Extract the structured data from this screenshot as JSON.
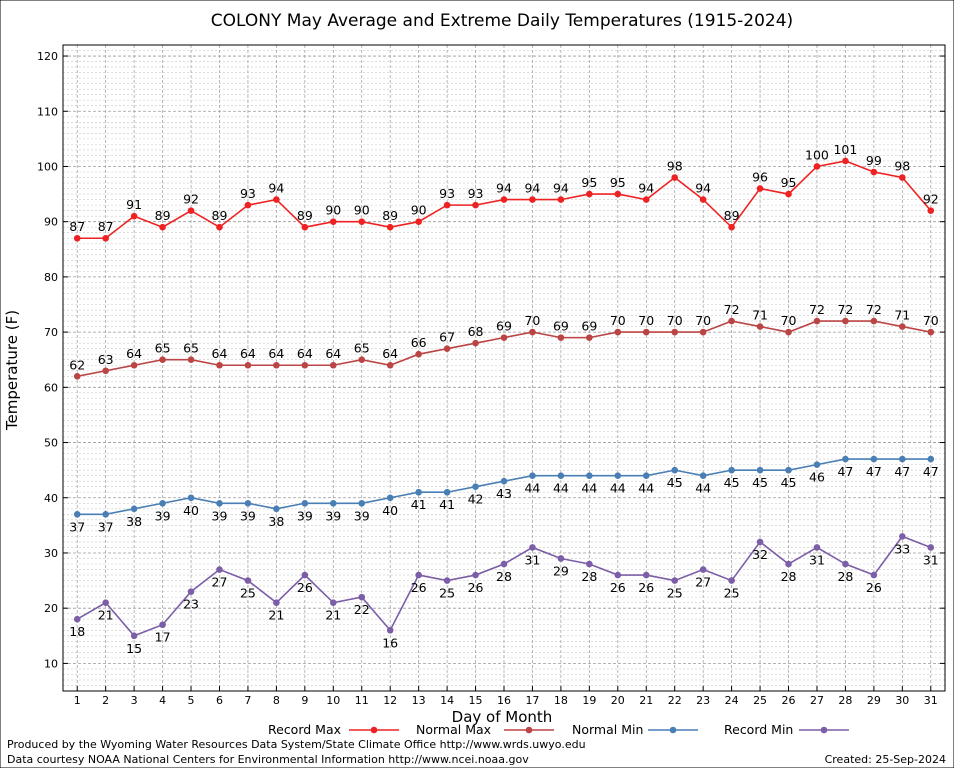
{
  "chart_data": {
    "type": "line",
    "title": "COLONY May Average and Extreme Daily Temperatures (1915-2024)",
    "xlabel": "Day of Month",
    "ylabel": "Temperature (F)",
    "xlim": [
      1,
      31
    ],
    "ylim": [
      5,
      122
    ],
    "y_ticks": [
      10,
      20,
      30,
      40,
      50,
      60,
      70,
      80,
      90,
      100,
      110,
      120
    ],
    "x": [
      1,
      2,
      3,
      4,
      5,
      6,
      7,
      8,
      9,
      10,
      11,
      12,
      13,
      14,
      15,
      16,
      17,
      18,
      19,
      20,
      21,
      22,
      23,
      24,
      25,
      26,
      27,
      28,
      29,
      30,
      31
    ],
    "grid": true,
    "legend_position": "bottom",
    "series": [
      {
        "name": "Record Max",
        "color": "#ee2222",
        "label_side": "above",
        "values": [
          87,
          87,
          91,
          89,
          92,
          89,
          93,
          94,
          89,
          90,
          90,
          89,
          90,
          93,
          93,
          94,
          94,
          94,
          95,
          95,
          94,
          98,
          94,
          89,
          96,
          95,
          100,
          101,
          99,
          98,
          92
        ]
      },
      {
        "name": "Normal Max",
        "color": "#bb4444",
        "label_side": "above",
        "values": [
          62,
          63,
          64,
          65,
          65,
          64,
          64,
          64,
          64,
          64,
          65,
          64,
          66,
          67,
          68,
          69,
          70,
          69,
          69,
          70,
          70,
          70,
          70,
          72,
          71,
          70,
          72,
          72,
          72,
          71,
          70
        ]
      },
      {
        "name": "Normal Min",
        "color": "#4a7fb5",
        "label_side": "below",
        "values": [
          37,
          37,
          38,
          39,
          40,
          39,
          39,
          38,
          39,
          39,
          39,
          40,
          41,
          41,
          42,
          43,
          44,
          44,
          44,
          44,
          44,
          45,
          44,
          45,
          45,
          45,
          46,
          47,
          47,
          47,
          47
        ]
      },
      {
        "name": "Record Min",
        "color": "#7b5ea7",
        "label_side": "below",
        "values": [
          18,
          21,
          15,
          17,
          23,
          27,
          25,
          21,
          26,
          21,
          22,
          16,
          26,
          25,
          26,
          28,
          31,
          29,
          28,
          26,
          26,
          25,
          27,
          25,
          32,
          28,
          31,
          28,
          26,
          33,
          31
        ]
      }
    ]
  },
  "footer": {
    "produced_by": "Produced by the Wyoming Water Resources Data System/State Climate Office http://www.wrds.uwyo.edu",
    "courtesy": "Data courtesy NOAA National Centers for Environmental Information http://www.ncei.noaa.gov",
    "created": "Created:  25-Sep-2024"
  }
}
